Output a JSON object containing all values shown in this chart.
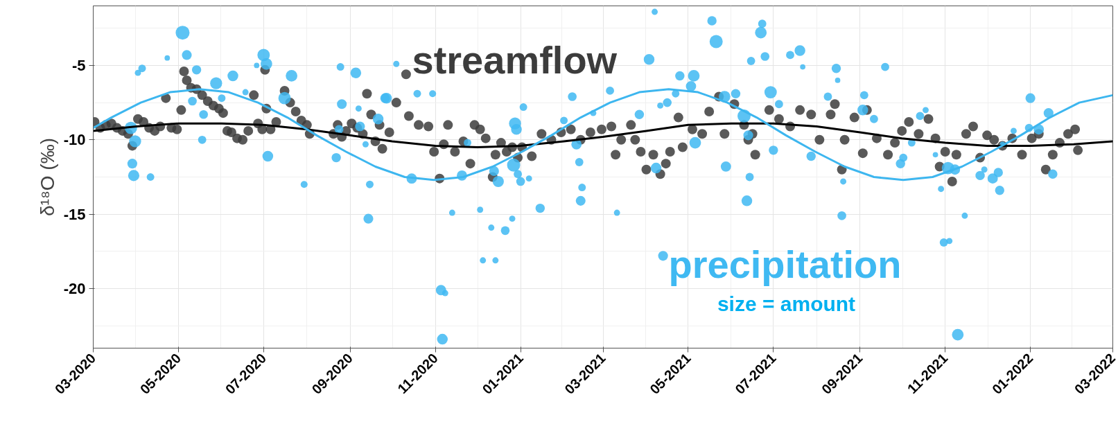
{
  "chart_data": {
    "type": "scatter",
    "ylabel": "δ¹⁸O (‰)",
    "annotations": [
      "size = amount"
    ],
    "xlim": [
      "2020-03-01",
      "2022-03-01"
    ],
    "ylim": [
      -24,
      -1
    ],
    "yticks": [
      -5,
      -10,
      -15,
      -20
    ],
    "xticks": [
      {
        "value": "2020-03",
        "label": "03-2020"
      },
      {
        "value": "2020-05",
        "label": "05-2020"
      },
      {
        "value": "2020-07",
        "label": "07-2020"
      },
      {
        "value": "2020-09",
        "label": "09-2020"
      },
      {
        "value": "2020-11",
        "label": "11-2020"
      },
      {
        "value": "2021-01",
        "label": "01-2021"
      },
      {
        "value": "2021-03",
        "label": "03-2021"
      },
      {
        "value": "2021-05",
        "label": "05-2021"
      },
      {
        "value": "2021-07",
        "label": "07-2021"
      },
      {
        "value": "2021-09",
        "label": "09-2021"
      },
      {
        "value": "2021-11",
        "label": "11-2021"
      },
      {
        "value": "2022-01",
        "label": "01-2022"
      },
      {
        "value": "2022-03",
        "label": "03-2022"
      }
    ],
    "grid": true,
    "series": [
      {
        "name": "streamflow",
        "marker": "circle",
        "color": "#3c3c3c",
        "x": [
          "2020-03-02",
          "2020-03-06",
          "2020-03-10",
          "2020-03-14",
          "2020-03-18",
          "2020-03-22",
          "2020-03-26",
          "2020-03-29",
          "2020-04-02",
          "2020-04-06",
          "2020-04-10",
          "2020-04-14",
          "2020-04-18",
          "2020-04-22",
          "2020-04-26",
          "2020-04-30",
          "2020-05-03",
          "2020-05-05",
          "2020-05-07",
          "2020-05-10",
          "2020-05-14",
          "2020-05-18",
          "2020-05-22",
          "2020-05-26",
          "2020-05-30",
          "2020-06-02",
          "2020-06-05",
          "2020-06-08",
          "2020-06-12",
          "2020-06-16",
          "2020-06-20",
          "2020-06-24",
          "2020-06-27",
          "2020-06-30",
          "2020-07-02",
          "2020-07-03",
          "2020-07-06",
          "2020-07-10",
          "2020-07-16",
          "2020-07-20",
          "2020-07-24",
          "2020-07-28",
          "2020-08-01",
          "2020-08-03",
          "2020-08-20",
          "2020-08-23",
          "2020-08-26",
          "2020-08-29",
          "2020-09-02",
          "2020-09-06",
          "2020-09-10",
          "2020-09-13",
          "2020-09-16",
          "2020-09-19",
          "2020-09-22",
          "2020-09-24",
          "2020-09-29",
          "2020-10-04",
          "2020-10-11",
          "2020-10-13",
          "2020-10-20",
          "2020-10-27",
          "2020-10-31",
          "2020-11-04",
          "2020-11-07",
          "2020-11-10",
          "2020-11-15",
          "2020-11-21",
          "2020-11-26",
          "2020-11-29",
          "2020-12-03",
          "2020-12-07",
          "2020-12-12",
          "2020-12-14",
          "2020-12-18",
          "2020-12-22",
          "2020-12-26",
          "2020-12-30",
          "2021-01-02",
          "2021-01-09",
          "2021-01-16",
          "2021-01-23",
          "2021-01-30",
          "2021-02-06",
          "2021-02-13",
          "2021-02-20",
          "2021-02-28",
          "2021-03-07",
          "2021-03-10",
          "2021-03-14",
          "2021-03-21",
          "2021-03-24",
          "2021-03-28",
          "2021-04-01",
          "2021-04-06",
          "2021-04-11",
          "2021-04-15",
          "2021-04-18",
          "2021-04-24",
          "2021-04-27",
          "2021-05-04",
          "2021-05-11",
          "2021-05-16",
          "2021-05-23",
          "2021-05-27",
          "2021-06-03",
          "2021-06-10",
          "2021-06-13",
          "2021-06-16",
          "2021-06-18",
          "2021-06-28",
          "2021-07-05",
          "2021-07-13",
          "2021-07-20",
          "2021-07-28",
          "2021-08-03",
          "2021-08-11",
          "2021-08-14",
          "2021-08-19",
          "2021-08-21",
          "2021-08-28",
          "2021-09-03",
          "2021-09-06",
          "2021-09-13",
          "2021-09-21",
          "2021-09-26",
          "2021-10-01",
          "2021-10-06",
          "2021-10-13",
          "2021-10-20",
          "2021-10-25",
          "2021-10-28",
          "2021-11-01",
          "2021-11-06",
          "2021-11-09",
          "2021-11-16",
          "2021-11-21",
          "2021-11-26",
          "2021-12-01",
          "2021-12-06",
          "2021-12-12",
          "2021-12-19",
          "2021-12-26",
          "2022-01-02",
          "2022-01-07",
          "2022-01-12",
          "2022-01-17",
          "2022-01-22",
          "2022-01-28",
          "2022-02-02",
          "2022-02-04"
        ],
        "values": [
          -8.8,
          -9.2,
          -9.0,
          -8.9,
          -9.2,
          -9.4,
          -9.6,
          -10.4,
          -8.6,
          -8.8,
          -9.2,
          -9.4,
          -9.1,
          -7.2,
          -9.2,
          -9.3,
          -8.0,
          -5.4,
          -6.0,
          -6.5,
          -6.6,
          -7.0,
          -7.4,
          -7.7,
          -7.9,
          -8.2,
          -9.4,
          -9.5,
          -9.9,
          -10.0,
          -9.4,
          -7.0,
          -8.9,
          -9.3,
          -5.3,
          -7.9,
          -9.3,
          -8.8,
          -6.7,
          -7.5,
          -8.1,
          -8.7,
          -9.0,
          -9.6,
          -9.6,
          -9.0,
          -9.8,
          -9.4,
          -8.9,
          -9.2,
          -9.6,
          -6.9,
          -8.3,
          -10.1,
          -9.0,
          -10.6,
          -9.5,
          -7.5,
          -5.6,
          -8.4,
          -9.0,
          -9.1,
          -10.8,
          -12.6,
          -10.3,
          -9.0,
          -10.8,
          -10.1,
          -11.6,
          -9.0,
          -9.3,
          -9.9,
          -12.5,
          -11.0,
          -10.2,
          -10.8,
          -10.5,
          -11.2,
          -10.5,
          -11.1,
          -9.6,
          -10.0,
          -9.5,
          -9.3,
          -10.0,
          -9.5,
          -9.3,
          -9.1,
          -11.0,
          -10.0,
          -9.0,
          -10.0,
          -10.8,
          -12.0,
          -11.0,
          -12.3,
          -11.6,
          -10.8,
          -8.5,
          -10.5,
          -9.3,
          -9.6,
          -8.1,
          -7.1,
          -9.6,
          -7.6,
          -9.0,
          -10.0,
          -9.6,
          -11.0,
          -8.0,
          -8.6,
          -9.1,
          -8.0,
          -8.3,
          -10.0,
          -8.3,
          -7.6,
          -12.0,
          -10.0,
          -8.5,
          -10.9,
          -8.0,
          -9.9,
          -11.0,
          -10.2,
          -9.4,
          -8.8,
          -9.6,
          -8.6,
          -9.9,
          -11.8,
          -10.8,
          -12.8,
          -11.0,
          -9.6,
          -9.1,
          -11.2,
          -9.7,
          -10.0,
          -10.4,
          -9.9,
          -11.0,
          -9.9,
          -9.6,
          -12.0,
          -11.0,
          -10.2,
          -9.6,
          -9.3,
          -10.7
        ]
      },
      {
        "name": "precipitation",
        "type": "bubble",
        "marker": "circle",
        "color": "#3fb9f2",
        "x": [
          "2020-05-04",
          "2020-05-07",
          "2020-04-23",
          "2020-04-05",
          "2020-04-02",
          "2020-05-14",
          "2020-05-28",
          "2020-06-09",
          "2020-06-18",
          "2020-06-01",
          "2020-05-11",
          "2020-05-19",
          "2020-05-18",
          "2020-06-26",
          "2020-07-01",
          "2020-07-03",
          "2020-07-16",
          "2020-07-21",
          "2020-07-04",
          "2020-07-30",
          "2020-03-28",
          "2020-03-31",
          "2020-03-29",
          "2020-03-30",
          "2020-04-11",
          "2020-08-25",
          "2020-09-05",
          "2020-08-26",
          "2020-08-22",
          "2020-08-24",
          "2020-09-08",
          "2020-09-07",
          "2020-09-15",
          "2020-09-14",
          "2020-09-26",
          "2020-09-21",
          "2020-09-12",
          "2020-09-27",
          "2020-10-04",
          "2020-10-19",
          "2020-10-30",
          "2020-10-15",
          "2020-11-05",
          "2020-11-08",
          "2020-11-06",
          "2020-11-13",
          "2020-11-20",
          "2020-11-24",
          "2020-12-03",
          "2020-12-05",
          "2020-12-14",
          "2020-12-11",
          "2020-12-13",
          "2020-12-16",
          "2020-12-21",
          "2020-12-26",
          "2020-12-27",
          "2020-12-28",
          "2020-12-29",
          "2021-01-01",
          "2020-12-30",
          "2021-01-07",
          "2021-01-03",
          "2021-01-15",
          "2021-02-01",
          "2021-02-07",
          "2021-02-10",
          "2021-02-12",
          "2021-02-14",
          "2021-02-13",
          "2021-02-22",
          "2021-03-06",
          "2021-03-11",
          "2021-03-27",
          "2021-04-03",
          "2021-04-07",
          "2021-04-08",
          "2021-04-11",
          "2021-04-13",
          "2021-04-16",
          "2021-04-22",
          "2021-04-25",
          "2021-05-03",
          "2021-05-05",
          "2021-05-06",
          "2021-05-18",
          "2021-05-21",
          "2021-05-27",
          "2021-06-04",
          "2021-05-28",
          "2021-06-15",
          "2021-06-12",
          "2021-06-14",
          "2021-06-10",
          "2021-06-13",
          "2021-06-23",
          "2021-06-22",
          "2021-06-25",
          "2021-06-29",
          "2021-07-05",
          "2021-07-01",
          "2021-07-13",
          "2021-07-20",
          "2021-07-22",
          "2021-07-28",
          "2021-08-09",
          "2021-08-15",
          "2021-08-16",
          "2021-08-20",
          "2021-08-19",
          "2021-09-04",
          "2021-09-03",
          "2021-09-11",
          "2021-09-19",
          "2021-09-30",
          "2021-10-02",
          "2021-10-08",
          "2021-10-14",
          "2021-10-18",
          "2021-10-25",
          "2021-10-29",
          "2021-10-31",
          "2021-11-04",
          "2021-11-03",
          "2021-11-08",
          "2021-11-10",
          "2021-11-15",
          "2021-11-26",
          "2021-11-29",
          "2021-12-05",
          "2021-12-09",
          "2021-12-10",
          "2021-12-12",
          "2021-12-20",
          "2021-12-31",
          "2022-01-01",
          "2022-01-07",
          "2022-01-14",
          "2022-01-17"
        ],
        "values": [
          -2.8,
          -4.3,
          -4.5,
          -5.2,
          -5.5,
          -5.3,
          -6.2,
          -5.7,
          -6.8,
          -7.2,
          -7.4,
          -8.3,
          -10.0,
          -5.0,
          -4.3,
          -4.9,
          -7.2,
          -5.7,
          -11.1,
          -13.0,
          -9.2,
          -10.1,
          -11.6,
          -12.4,
          -12.5,
          -5.1,
          -5.5,
          -7.6,
          -11.2,
          -9.3,
          -9.1,
          -7.9,
          -13.0,
          -15.3,
          -7.2,
          -8.6,
          -10.3,
          -7.2,
          -4.9,
          -6.9,
          -6.9,
          -12.6,
          -20.1,
          -20.3,
          -23.4,
          -14.9,
          -12.4,
          -10.2,
          -14.7,
          -18.1,
          -18.1,
          -15.9,
          -12.1,
          -12.8,
          -16.1,
          -15.3,
          -11.7,
          -8.9,
          -9.3,
          -12.8,
          -12.3,
          -12.6,
          -7.8,
          -14.6,
          -8.7,
          -7.1,
          -10.3,
          -11.5,
          -13.2,
          -14.1,
          -8.2,
          -6.7,
          -14.9,
          -8.3,
          -4.6,
          -1.4,
          -11.9,
          -7.7,
          -17.8,
          -7.5,
          -6.9,
          -5.7,
          -6.4,
          -5.7,
          -10.2,
          -2.0,
          -3.4,
          -7.1,
          -6.9,
          -11.8,
          -4.7,
          -14.1,
          -12.5,
          -8.4,
          -9.7,
          -2.2,
          -2.8,
          -4.4,
          -6.8,
          -7.6,
          -10.7,
          -4.3,
          -4.0,
          -5.1,
          -11.1,
          -7.1,
          -5.2,
          -6.0,
          -12.8,
          -15.1,
          -7.0,
          -8.0,
          -8.6,
          -5.1,
          -11.6,
          -11.2,
          -10.2,
          -8.4,
          -8.0,
          -11.0,
          -13.3,
          -16.9,
          -16.8,
          -11.9,
          -12.0,
          -23.1,
          -15.1,
          -12.4,
          -12.0,
          -12.6,
          -12.2,
          -13.4,
          -10.3,
          -9.4,
          -9.2,
          -7.2,
          -9.3,
          -8.2,
          -12.3
        ],
        "sizes": [
          1.0,
          0.5,
          0.15,
          0.3,
          0.2,
          0.45,
          0.75,
          0.6,
          0.2,
          0.3,
          0.4,
          0.4,
          0.35,
          0.15,
          0.8,
          0.7,
          0.8,
          0.7,
          0.6,
          0.25,
          0.8,
          0.75,
          0.5,
          0.65,
          0.3,
          0.3,
          0.6,
          0.5,
          0.45,
          0.4,
          0.5,
          0.2,
          0.3,
          0.5,
          0.5,
          0.6,
          0.2,
          0.6,
          0.2,
          0.3,
          0.25,
          0.55,
          0.55,
          0.2,
          0.6,
          0.2,
          0.55,
          0.3,
          0.2,
          0.2,
          0.2,
          0.2,
          0.5,
          0.65,
          0.4,
          0.2,
          0.9,
          0.75,
          0.6,
          0.4,
          0.35,
          0.2,
          0.3,
          0.45,
          0.3,
          0.4,
          0.55,
          0.35,
          0.3,
          0.5,
          0.2,
          0.35,
          0.2,
          0.45,
          0.6,
          0.2,
          0.6,
          0.2,
          0.5,
          0.4,
          0.3,
          0.45,
          0.55,
          0.7,
          0.7,
          0.45,
          0.9,
          0.7,
          0.45,
          0.55,
          0.35,
          0.6,
          0.35,
          0.9,
          0.5,
          0.35,
          0.7,
          0.4,
          0.8,
          0.35,
          0.45,
          0.35,
          0.6,
          0.15,
          0.45,
          0.35,
          0.45,
          0.15,
          0.2,
          0.4,
          0.35,
          0.6,
          0.35,
          0.35,
          0.45,
          0.35,
          0.3,
          0.35,
          0.2,
          0.15,
          0.2,
          0.35,
          0.2,
          0.8,
          0.55,
          0.7,
          0.2,
          0.45,
          0.2,
          0.55,
          0.45,
          0.45,
          0.15,
          0.2,
          0.35,
          0.5,
          0.55,
          0.5,
          0.45
        ]
      },
      {
        "type": "line",
        "color": "#000000",
        "x": [
          "2020-03-01",
          "2020-04-01",
          "2020-05-01",
          "2020-06-01",
          "2020-07-01",
          "2020-08-01",
          "2020-09-01",
          "2020-10-01",
          "2020-11-01",
          "2020-12-01",
          "2021-01-01",
          "2021-02-01",
          "2021-03-01",
          "2021-04-01",
          "2021-05-01",
          "2021-06-01",
          "2021-07-01",
          "2021-08-01",
          "2021-09-01",
          "2021-10-01",
          "2021-11-01",
          "2021-12-01",
          "2022-01-01",
          "2022-02-01",
          "2022-03-01"
        ],
        "values": [
          -9.4,
          -9.1,
          -8.9,
          -8.9,
          -9.0,
          -9.3,
          -9.7,
          -10.1,
          -10.4,
          -10.5,
          -10.4,
          -10.1,
          -9.8,
          -9.4,
          -9.0,
          -8.9,
          -8.9,
          -9.1,
          -9.5,
          -9.9,
          -10.2,
          -10.4,
          -10.4,
          -10.3,
          -10.1
        ]
      },
      {
        "type": "line",
        "color": "#3db6ef",
        "x": [
          "2020-03-01",
          "2020-03-14",
          "2020-04-04",
          "2020-04-25",
          "2020-05-16",
          "2020-06-06",
          "2020-06-27",
          "2020-07-18",
          "2020-08-08",
          "2020-08-29",
          "2020-09-19",
          "2020-10-10",
          "2020-10-31",
          "2020-11-21",
          "2020-12-12",
          "2021-01-02",
          "2021-01-23",
          "2021-02-13",
          "2021-03-06",
          "2021-03-27",
          "2021-04-17",
          "2021-05-08",
          "2021-05-29",
          "2021-06-19",
          "2021-07-10",
          "2021-07-31",
          "2021-08-21",
          "2021-09-11",
          "2021-10-02",
          "2021-10-23",
          "2021-11-13",
          "2021-12-04",
          "2021-12-25",
          "2022-01-15",
          "2022-02-05",
          "2022-03-01"
        ],
        "values": [
          -9.2,
          -8.5,
          -7.5,
          -6.8,
          -6.6,
          -6.8,
          -7.5,
          -8.5,
          -9.7,
          -10.8,
          -11.8,
          -12.5,
          -12.7,
          -12.5,
          -11.8,
          -10.8,
          -9.7,
          -8.5,
          -7.5,
          -6.8,
          -6.6,
          -6.8,
          -7.5,
          -8.5,
          -9.7,
          -10.8,
          -11.8,
          -12.5,
          -12.7,
          -12.5,
          -11.8,
          -10.8,
          -9.7,
          -8.5,
          -7.5,
          -7.0
        ]
      }
    ]
  }
}
